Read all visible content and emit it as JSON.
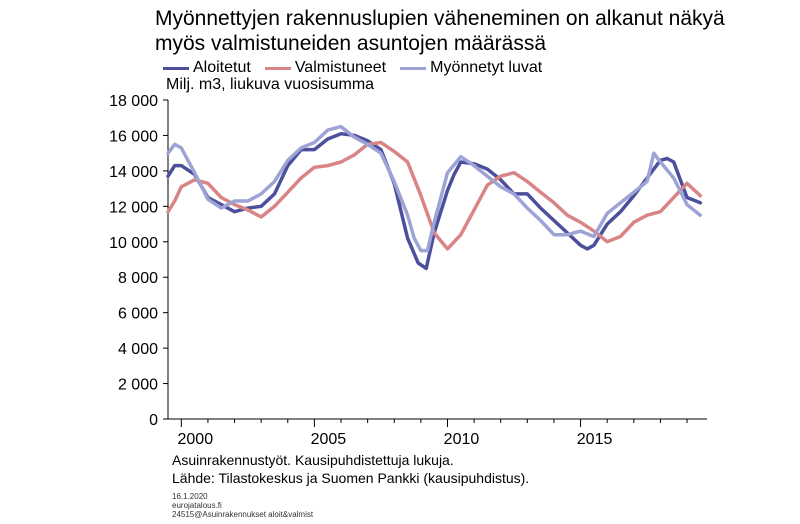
{
  "title_line1": "Myönnettyjen rakennuslupien väheneminen on alkanut näkyä",
  "title_line2": "myös valmistuneiden asuntojen määrässä",
  "unit_label": "Milj. m3, liukuva vuosisumma",
  "source_line1": "Asuinrakennustyöt. Kausipuhdistettuja lukuja.",
  "source_line2": "Lähde: Tilastokeskus ja Suomen Pankki (kausipuhdistus).",
  "meta_date": "16.1.2020",
  "meta_site": "eurojatalous.fi",
  "meta_id": "24515@Asuinrakennukset aloit&valmist",
  "chart_data": {
    "type": "line",
    "ylim": [
      0,
      18000
    ],
    "xlim": [
      1999.5,
      2019.75
    ],
    "y_ticks": [
      0,
      2000,
      4000,
      6000,
      8000,
      10000,
      12000,
      14000,
      16000,
      18000
    ],
    "y_tick_labels": [
      "0",
      "2 000",
      "4 000",
      "6 000",
      "8 000",
      "10 000",
      "12 000",
      "14 000",
      "16 000",
      "18 000"
    ],
    "x_tick_labels": [
      {
        "label": "2000",
        "x": 2000
      },
      {
        "label": "2005",
        "x": 2005
      },
      {
        "label": "2010",
        "x": 2010
      },
      {
        "label": "2015",
        "x": 2015
      }
    ],
    "grid": false,
    "legend_position": "top-left",
    "series": [
      {
        "name": "Aloitetut",
        "color": "#4b4f9c",
        "x": [
          1999.5,
          1999.75,
          2000,
          2000.5,
          2001,
          2001.5,
          2002,
          2002.5,
          2003,
          2003.5,
          2004,
          2004.5,
          2005,
          2005.5,
          2006,
          2006.5,
          2007,
          2007.5,
          2008,
          2008.5,
          2008.9,
          2009.2,
          2009.5,
          2010,
          2010.25,
          2010.5,
          2011,
          2011.5,
          2012,
          2012.5,
          2013,
          2013.5,
          2014,
          2014.5,
          2015,
          2015.25,
          2015.5,
          2016,
          2016.5,
          2017,
          2017.5,
          2018,
          2018.25,
          2018.5,
          2019,
          2019.5
        ],
        "values": [
          13700,
          14300,
          14300,
          13800,
          12500,
          12100,
          11700,
          11900,
          12000,
          12700,
          14300,
          15200,
          15200,
          15800,
          16100,
          16000,
          15700,
          15200,
          13300,
          10200,
          8800,
          8500,
          10500,
          12900,
          13800,
          14500,
          14400,
          14100,
          13500,
          12700,
          12700,
          11900,
          11200,
          10500,
          9800,
          9600,
          9800,
          11000,
          11700,
          12600,
          13600,
          14600,
          14700,
          14500,
          12500,
          12200
        ]
      },
      {
        "name": "Valmistuneet",
        "color": "#d98585",
        "x": [
          1999.5,
          1999.75,
          2000,
          2000.5,
          2001,
          2001.5,
          2002,
          2002.5,
          2003,
          2003.5,
          2004,
          2004.5,
          2005,
          2005.5,
          2006,
          2006.5,
          2007,
          2007.5,
          2008,
          2008.5,
          2009,
          2009.5,
          2010,
          2010.5,
          2011,
          2011.5,
          2012,
          2012.5,
          2013,
          2013.5,
          2014,
          2014.5,
          2015,
          2015.5,
          2016,
          2016.5,
          2017,
          2017.5,
          2018,
          2018.5,
          2019,
          2019.5
        ],
        "values": [
          11700,
          12300,
          13100,
          13500,
          13300,
          12500,
          12100,
          11800,
          11400,
          12000,
          12800,
          13600,
          14200,
          14300,
          14500,
          14900,
          15500,
          15600,
          15100,
          14500,
          12600,
          10500,
          9600,
          10400,
          11800,
          13200,
          13700,
          13900,
          13400,
          12800,
          12200,
          11500,
          11100,
          10600,
          10000,
          10300,
          11100,
          11500,
          11700,
          12500,
          13300,
          12600
        ]
      },
      {
        "name": "Myönnetyt luvat",
        "color": "#9ea3d6",
        "x": [
          1999.5,
          1999.75,
          2000,
          2000.5,
          2001,
          2001.5,
          2002,
          2002.5,
          2003,
          2003.5,
          2004,
          2004.5,
          2005,
          2005.5,
          2006,
          2006.5,
          2007,
          2007.5,
          2008,
          2008.5,
          2008.75,
          2009,
          2009.25,
          2009.5,
          2010,
          2010.5,
          2011,
          2011.5,
          2012,
          2012.5,
          2013,
          2013.5,
          2014,
          2014.5,
          2015,
          2015.5,
          2016,
          2016.5,
          2017,
          2017.5,
          2017.75,
          2018,
          2018.5,
          2019,
          2019.5
        ],
        "values": [
          15000,
          15500,
          15300,
          13900,
          12400,
          11900,
          12300,
          12300,
          12700,
          13400,
          14600,
          15300,
          15600,
          16300,
          16500,
          15900,
          15500,
          15000,
          13400,
          11500,
          10200,
          9500,
          9500,
          11100,
          13900,
          14800,
          14300,
          13700,
          13100,
          12700,
          11900,
          11200,
          10400,
          10400,
          10600,
          10300,
          11600,
          12200,
          12800,
          13400,
          15000,
          14500,
          13600,
          12100,
          11500
        ]
      }
    ]
  }
}
